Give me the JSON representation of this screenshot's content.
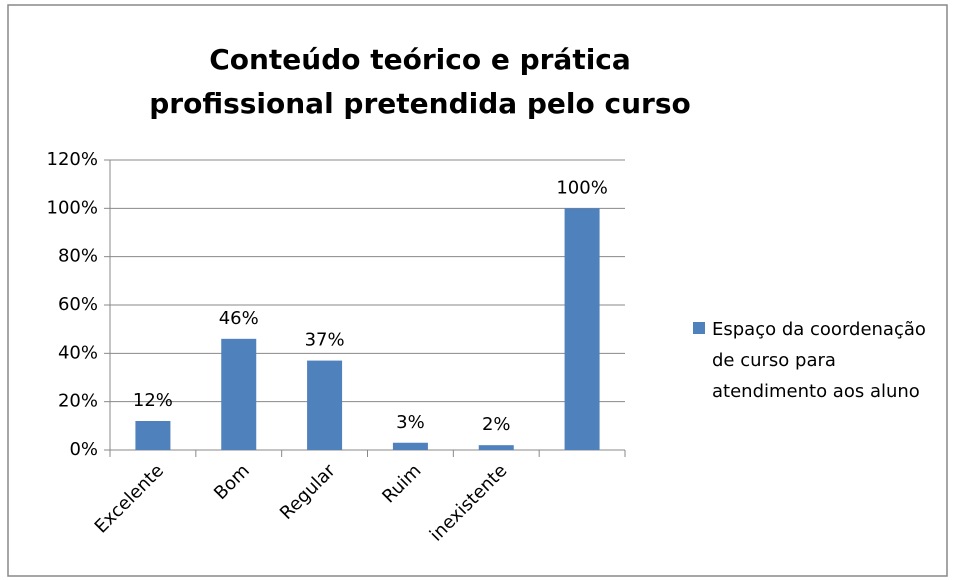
{
  "chart_data": {
    "type": "bar",
    "title": "Conteúdo teórico e prática profissional pretendida pelo curso",
    "categories": [
      "Excelente",
      "Bom",
      "Regular",
      "Ruim",
      "inexistente",
      null
    ],
    "series": [
      {
        "name": "Espaço da coordenação de curso para atendimento aos aluno",
        "color": "#4f81bd",
        "values": [
          12,
          46,
          37,
          3,
          2,
          100
        ],
        "value_labels": [
          "12%",
          "46%",
          "37%",
          "3%",
          "2%",
          "100%"
        ]
      }
    ],
    "ylim": [
      0,
      120
    ],
    "yticks": [
      {
        "value": 0,
        "label": "0%"
      },
      {
        "value": 20,
        "label": "20%"
      },
      {
        "value": 40,
        "label": "40%"
      },
      {
        "value": 60,
        "label": "60%"
      },
      {
        "value": 80,
        "label": "80%"
      },
      {
        "value": 100,
        "label": "100%"
      },
      {
        "value": 120,
        "label": "120%"
      }
    ],
    "grid": true,
    "legend": "right"
  }
}
